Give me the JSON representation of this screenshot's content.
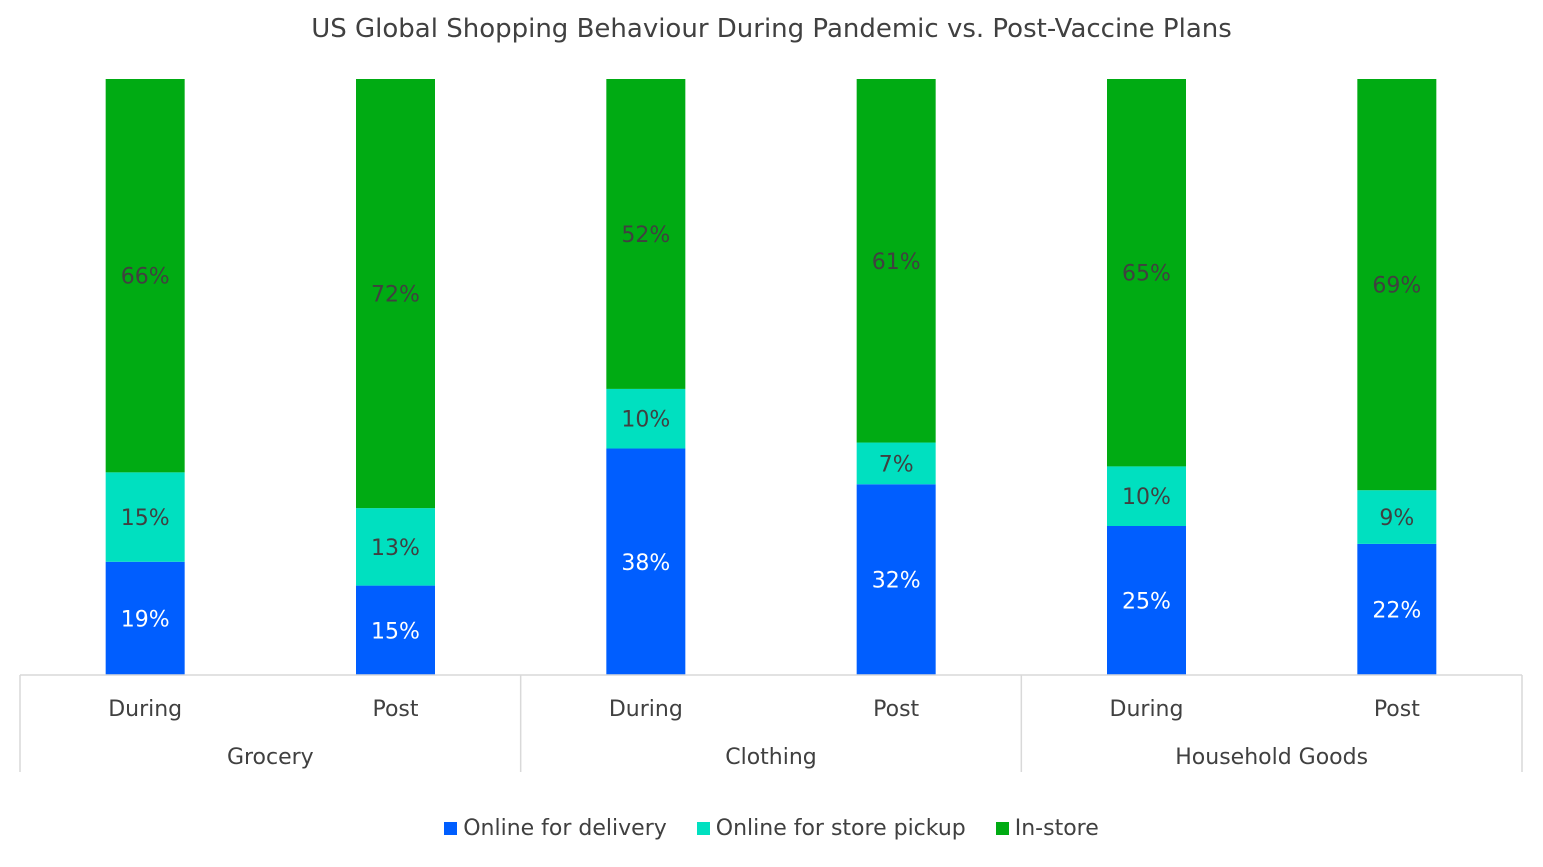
{
  "chart_data": {
    "type": "bar",
    "stacked": true,
    "title": "US Global Shopping Behaviour During Pandemic vs. Post-Vaccine Plans",
    "groups": [
      {
        "name": "Grocery",
        "categories": [
          "During",
          "Post"
        ]
      },
      {
        "name": "Clothing",
        "categories": [
          "During",
          "Post"
        ]
      },
      {
        "name": "Household Goods",
        "categories": [
          "During",
          "Post"
        ]
      }
    ],
    "series": [
      {
        "name": "Online for delivery",
        "color": "#005eff",
        "label_color": "#ffffff",
        "values": [
          19,
          15,
          38,
          32,
          25,
          22
        ],
        "labels": [
          "19%",
          "15%",
          "38%",
          "32%",
          "25%",
          "22%"
        ]
      },
      {
        "name": "Online for store pickup",
        "color": "#00e0c0",
        "label_color": "#404040",
        "values": [
          15,
          13,
          10,
          7,
          10,
          9
        ],
        "labels": [
          "15%",
          "13%",
          "10%",
          "7%",
          "10%",
          "9%"
        ]
      },
      {
        "name": "In-store",
        "color": "#00ab13",
        "label_color": "#404040",
        "values": [
          66,
          72,
          52,
          61,
          65,
          69
        ],
        "labels": [
          "66%",
          "72%",
          "52%",
          "61%",
          "65%",
          "69%"
        ]
      }
    ],
    "xlabel": "",
    "ylabel": "",
    "ylim": [
      0,
      100
    ],
    "grid": false,
    "legend": "bottom"
  }
}
